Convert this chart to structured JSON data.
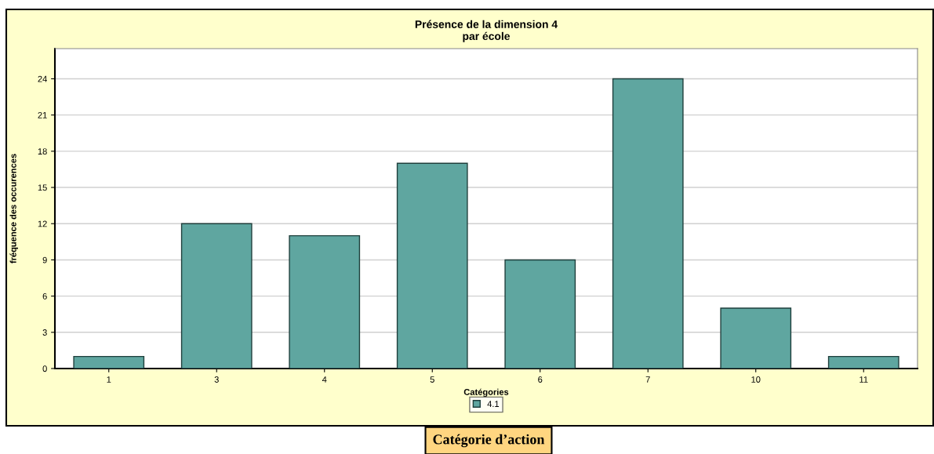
{
  "chart_data": {
    "type": "bar",
    "title": "Présence de la dimension 4\npar école",
    "xlabel": "Catégories",
    "ylabel": "fréquence des occurences",
    "categories": [
      "1",
      "3",
      "4",
      "5",
      "6",
      "7",
      "10",
      "11"
    ],
    "series": [
      {
        "name": "4.1",
        "color": "#5fa6a0",
        "values": [
          1,
          12,
          11,
          17,
          9,
          24,
          5,
          1
        ]
      }
    ],
    "ylim": [
      0,
      26.5
    ],
    "yticks": [
      0,
      3,
      6,
      9,
      12,
      15,
      18,
      21,
      24
    ],
    "grid": "y",
    "legend": "bottom",
    "annotations": [
      "Catégorie d’action"
    ]
  }
}
